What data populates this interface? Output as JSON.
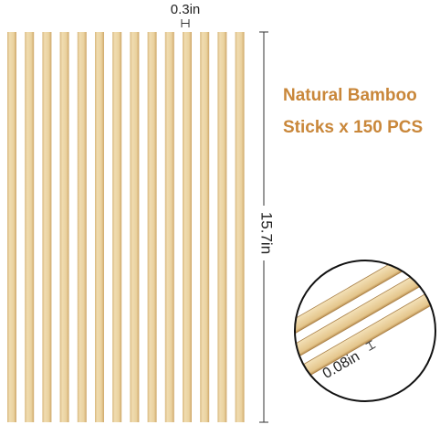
{
  "width_label": "0.3in",
  "length_label": "15.7in",
  "thickness_label": "0.08in",
  "headline": {
    "line1": "Natural Bamboo",
    "line2": "Sticks x 150 PCS"
  }
}
